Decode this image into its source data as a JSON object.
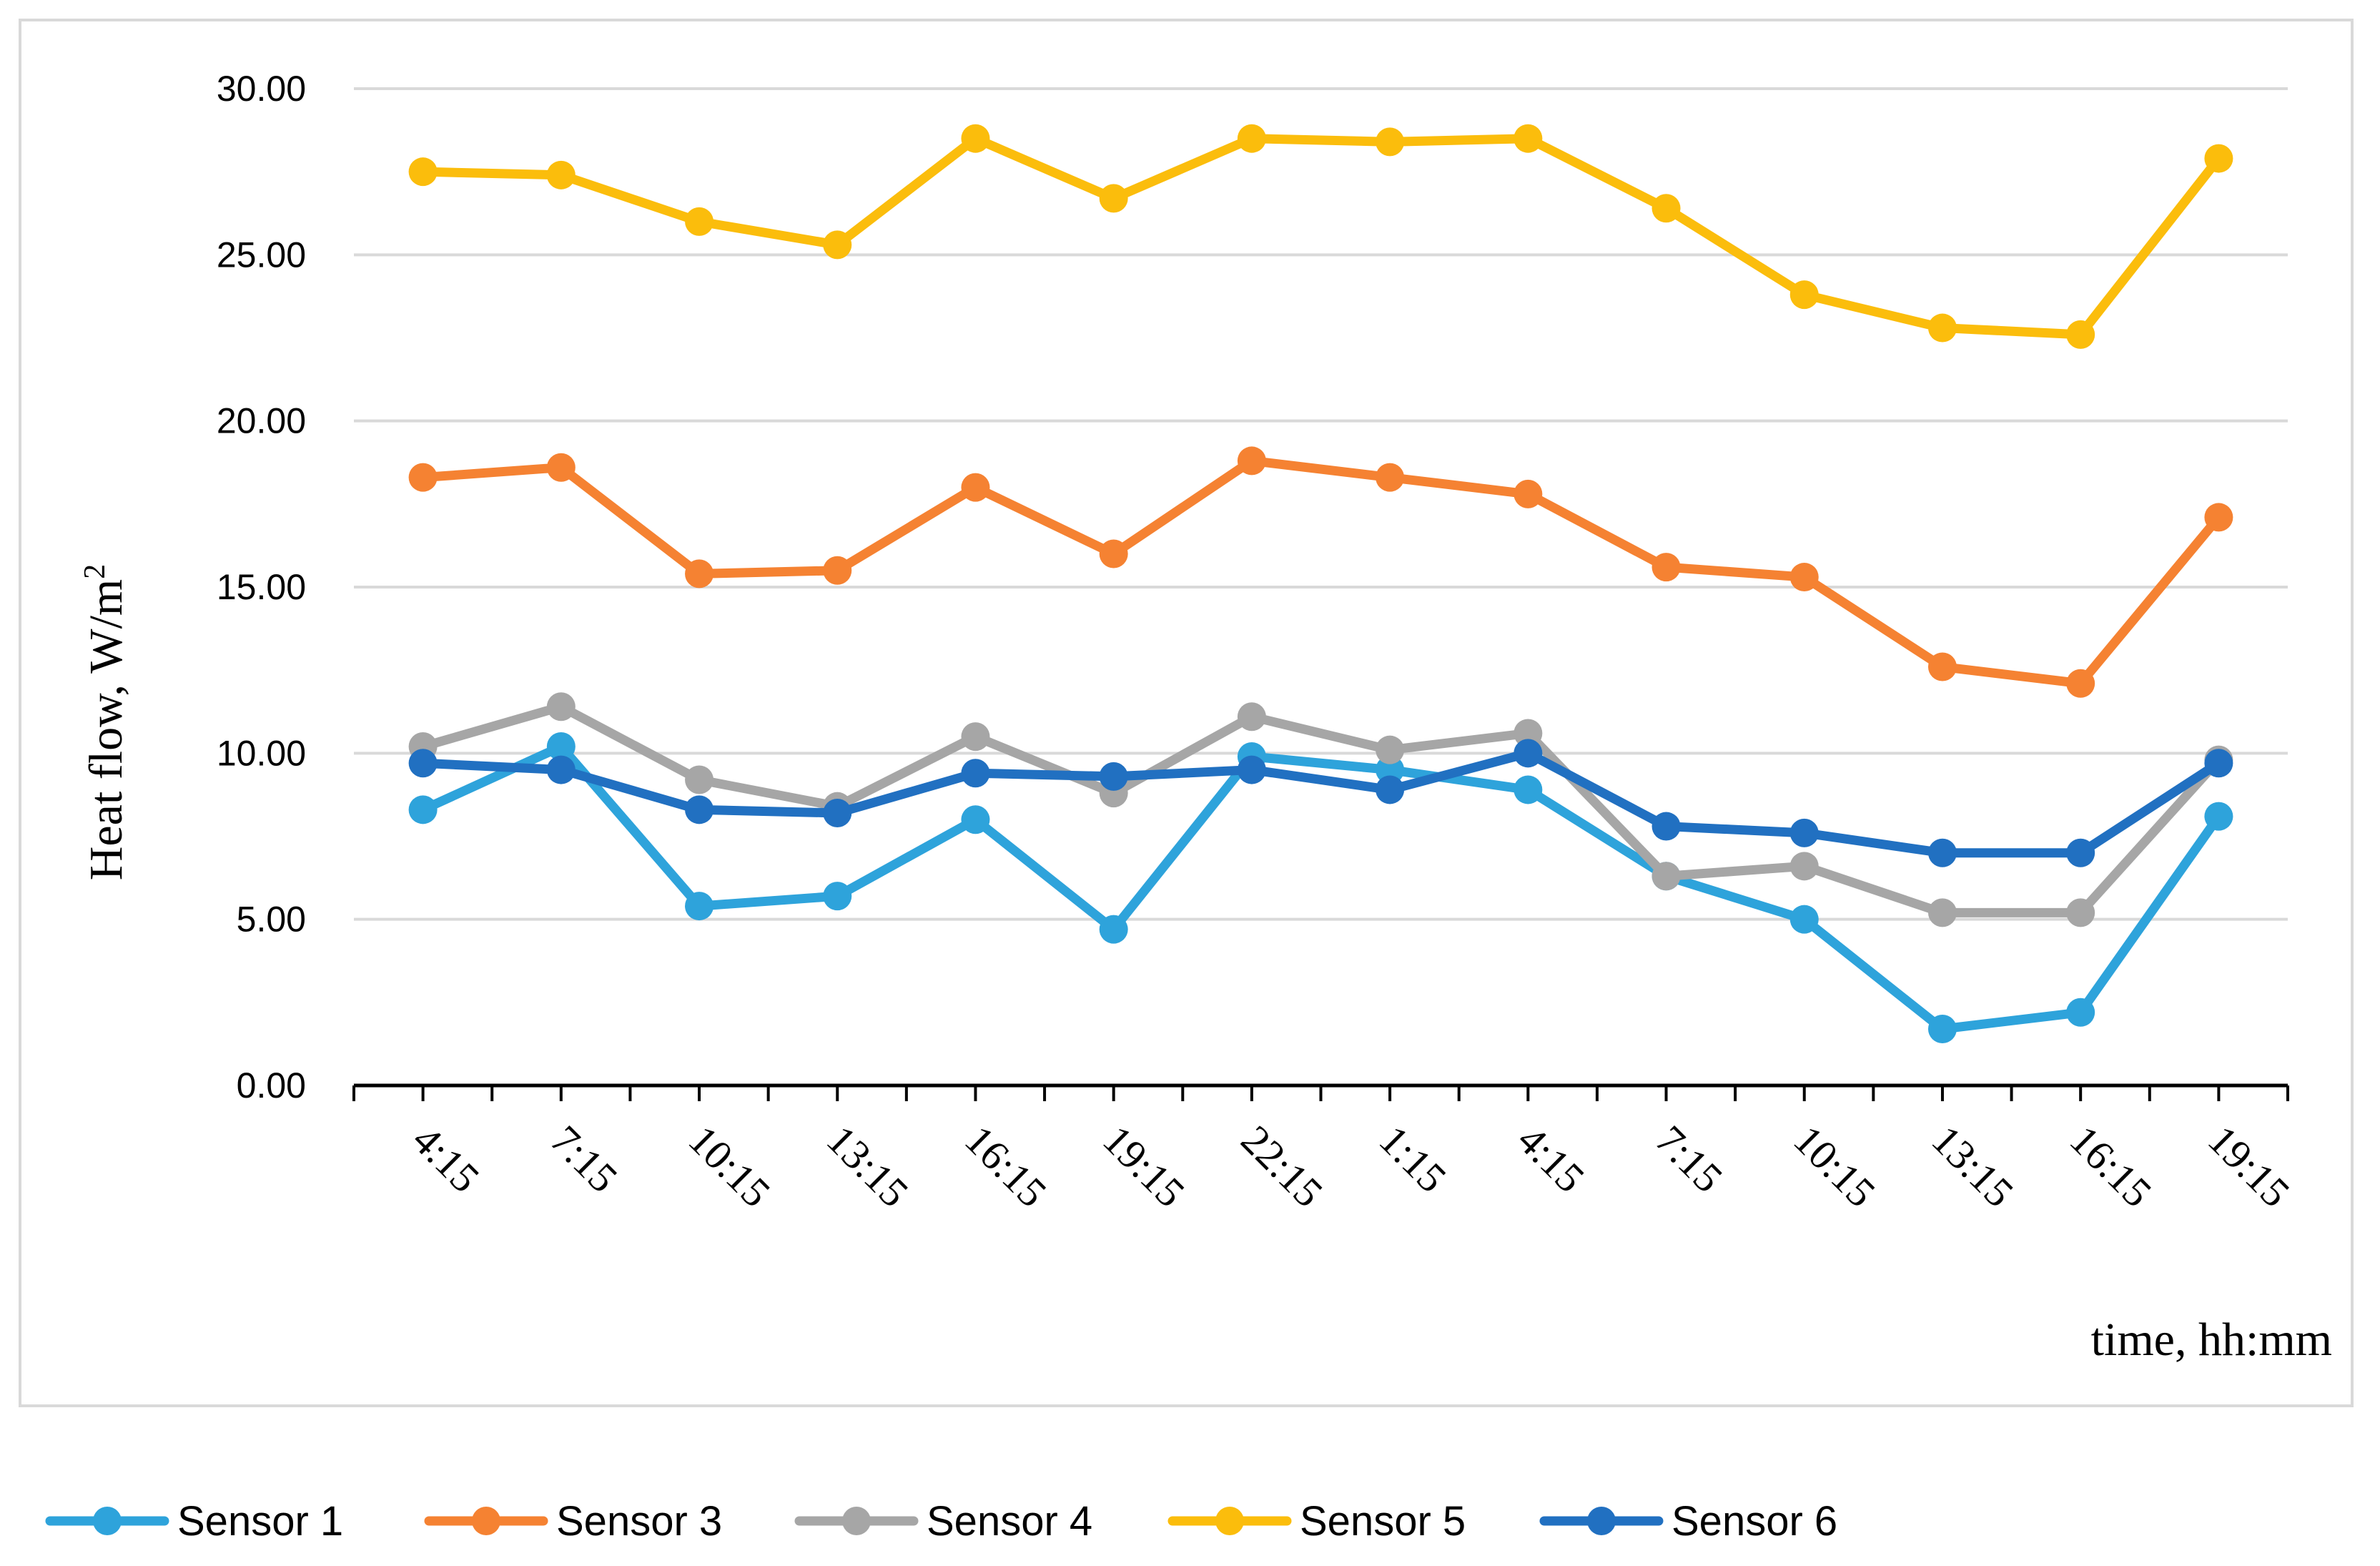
{
  "chart_data": {
    "type": "line",
    "title": "",
    "xlabel": "time, hh:mm",
    "ylabel": "Heat flow,  W/m",
    "ylabel_superscript": "2",
    "categories": [
      "4:15",
      "7:15",
      "10:15",
      "13:15",
      "16:15",
      "19:15",
      "22:15",
      "1:15",
      "4:15",
      "7:15",
      "10:15",
      "13:15",
      "16:15",
      "19:15"
    ],
    "yticks": [
      "0.00",
      "5.00",
      "10.00",
      "15.00",
      "20.00",
      "25.00",
      "30.00"
    ],
    "ylim": [
      0,
      30
    ],
    "grid": true,
    "legend_position": "bottom",
    "series": [
      {
        "name": "Sensor 1",
        "color": "#2ea3db",
        "values": [
          8.3,
          10.2,
          5.4,
          5.7,
          8.0,
          4.7,
          9.9,
          9.5,
          8.9,
          6.3,
          5.0,
          1.7,
          2.2,
          8.1
        ]
      },
      {
        "name": "Sensor 3",
        "color": "#f58232",
        "values": [
          18.3,
          18.6,
          15.4,
          15.5,
          18.0,
          16.0,
          18.8,
          18.3,
          17.8,
          15.6,
          15.3,
          12.6,
          12.1,
          17.1
        ]
      },
      {
        "name": "Sensor 4",
        "color": "#a6a6a6",
        "values": [
          10.2,
          11.4,
          9.2,
          8.4,
          10.5,
          8.8,
          11.1,
          10.1,
          10.6,
          6.3,
          6.6,
          5.2,
          5.2,
          9.8
        ]
      },
      {
        "name": "Sensor 5",
        "color": "#fbbd0c",
        "values": [
          27.5,
          27.4,
          26.0,
          25.3,
          28.5,
          26.7,
          28.5,
          28.4,
          28.5,
          26.4,
          23.8,
          22.8,
          22.6,
          27.9
        ]
      },
      {
        "name": "Sensor 6",
        "color": "#2170c1",
        "values": [
          9.7,
          9.5,
          8.3,
          8.2,
          9.4,
          9.3,
          9.5,
          8.9,
          10.0,
          7.8,
          7.6,
          7.0,
          7.0,
          9.7
        ]
      }
    ]
  }
}
